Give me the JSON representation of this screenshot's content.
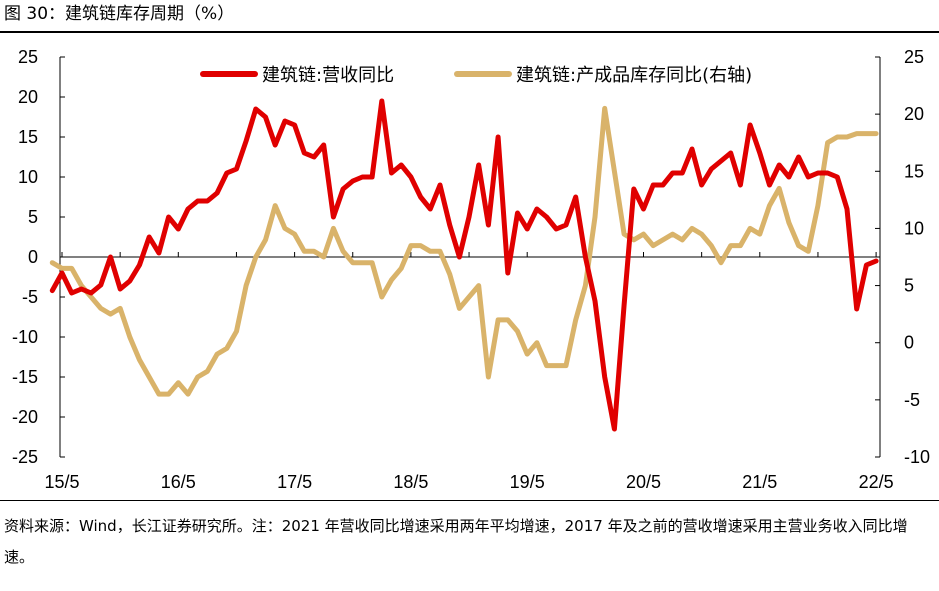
{
  "figure": {
    "title": "图 30：建筑链库存周期（%）",
    "note": "资料来源：Wind，长江证券研究所。注：2021 年营收同比增速采用两年平均增速，2017 年及之前的营收增速采用主营业务收入同比增速。"
  },
  "chart_data": {
    "type": "line",
    "title": "建筑链库存周期（%）",
    "x_tick_labels": [
      "15/5",
      "16/5",
      "17/5",
      "18/5",
      "19/5",
      "20/5",
      "21/5",
      "22/5"
    ],
    "x": [
      "15/4",
      "15/5",
      "15/6",
      "15/7",
      "15/8",
      "15/9",
      "15/10",
      "15/11",
      "15/12",
      "16/1",
      "16/2",
      "16/3",
      "16/4",
      "16/5",
      "16/6",
      "16/7",
      "16/8",
      "16/9",
      "16/10",
      "16/11",
      "16/12",
      "17/1",
      "17/2",
      "17/3",
      "17/4",
      "17/5",
      "17/6",
      "17/7",
      "17/8",
      "17/9",
      "17/10",
      "17/11",
      "17/12",
      "18/1",
      "18/2",
      "18/3",
      "18/4",
      "18/5",
      "18/6",
      "18/7",
      "18/8",
      "18/9",
      "18/10",
      "18/11",
      "18/12",
      "19/1",
      "19/2",
      "19/3",
      "19/4",
      "19/5",
      "19/6",
      "19/7",
      "19/8",
      "19/9",
      "19/10",
      "19/11",
      "19/12",
      "20/1",
      "20/2",
      "20/3",
      "20/4",
      "20/5",
      "20/6",
      "20/7",
      "20/8",
      "20/9",
      "20/10",
      "20/11",
      "20/12",
      "21/1",
      "21/2",
      "21/3",
      "21/4",
      "21/5",
      "21/6",
      "21/7",
      "21/8",
      "21/9",
      "21/10",
      "21/11",
      "21/12",
      "22/1",
      "22/2",
      "22/3",
      "22/4",
      "22/5"
    ],
    "left_axis": {
      "ylim": [
        -25,
        25
      ],
      "ticks": [
        -25,
        -20,
        -15,
        -10,
        -5,
        0,
        5,
        10,
        15,
        20,
        25
      ]
    },
    "right_axis": {
      "ylim": [
        -10,
        25
      ],
      "ticks": [
        -10,
        -5,
        0,
        5,
        10,
        15,
        20,
        25
      ]
    },
    "series": [
      {
        "name": "建筑链:营收同比",
        "axis": "left",
        "color": "#E00000",
        "values": [
          -4.2,
          -2,
          -4.5,
          -4,
          -4.5,
          -3.5,
          0,
          -4,
          -3,
          -1,
          2.5,
          0.5,
          5,
          3.5,
          6,
          7,
          7,
          8,
          10.5,
          11,
          14.5,
          18.5,
          17.5,
          14,
          17,
          16.5,
          13,
          12.5,
          14,
          5,
          8.5,
          9.5,
          10,
          10,
          19.5,
          10.5,
          11.5,
          10,
          7.5,
          6,
          9,
          4,
          0,
          5,
          11.5,
          4,
          15,
          -2,
          5.5,
          3.5,
          6,
          5,
          3.5,
          4,
          7.5,
          0,
          -5.5,
          -15,
          -21.5,
          -6,
          8.5,
          6,
          9,
          9,
          10.5,
          10.5,
          13.5,
          9,
          11,
          12,
          13,
          9,
          16.5,
          13,
          9,
          11.5,
          10,
          12.5,
          10,
          10.5,
          10.5,
          10,
          6,
          -6.5,
          -1,
          -0.5
        ]
      },
      {
        "name": "建筑链:产成品库存同比(右轴)",
        "axis": "right",
        "color": "#D9B36A",
        "values": [
          7,
          6.5,
          6.5,
          5,
          4,
          3,
          2.5,
          3,
          0.5,
          -1.5,
          -3,
          -4.5,
          -4.5,
          -3.5,
          -4.5,
          -3,
          -2.5,
          -1,
          -0.5,
          1,
          5,
          7.5,
          9,
          12,
          10,
          9.5,
          8,
          8,
          7.5,
          10,
          8,
          7,
          7,
          7,
          4,
          5.5,
          6.5,
          8.5,
          8.5,
          8,
          8,
          6,
          3,
          4,
          5,
          -3,
          2,
          2,
          1,
          -1,
          0,
          -2,
          -2,
          -2,
          2,
          5,
          11,
          20.5,
          15,
          9.5,
          9,
          9.5,
          8.5,
          9,
          9.5,
          9,
          10,
          9.5,
          8.5,
          7,
          8.5,
          8.5,
          10,
          9.5,
          12,
          13.5,
          10.5,
          8.5,
          8,
          12,
          17.5,
          18,
          18,
          18.3,
          18.3,
          18.3
        ]
      }
    ]
  }
}
